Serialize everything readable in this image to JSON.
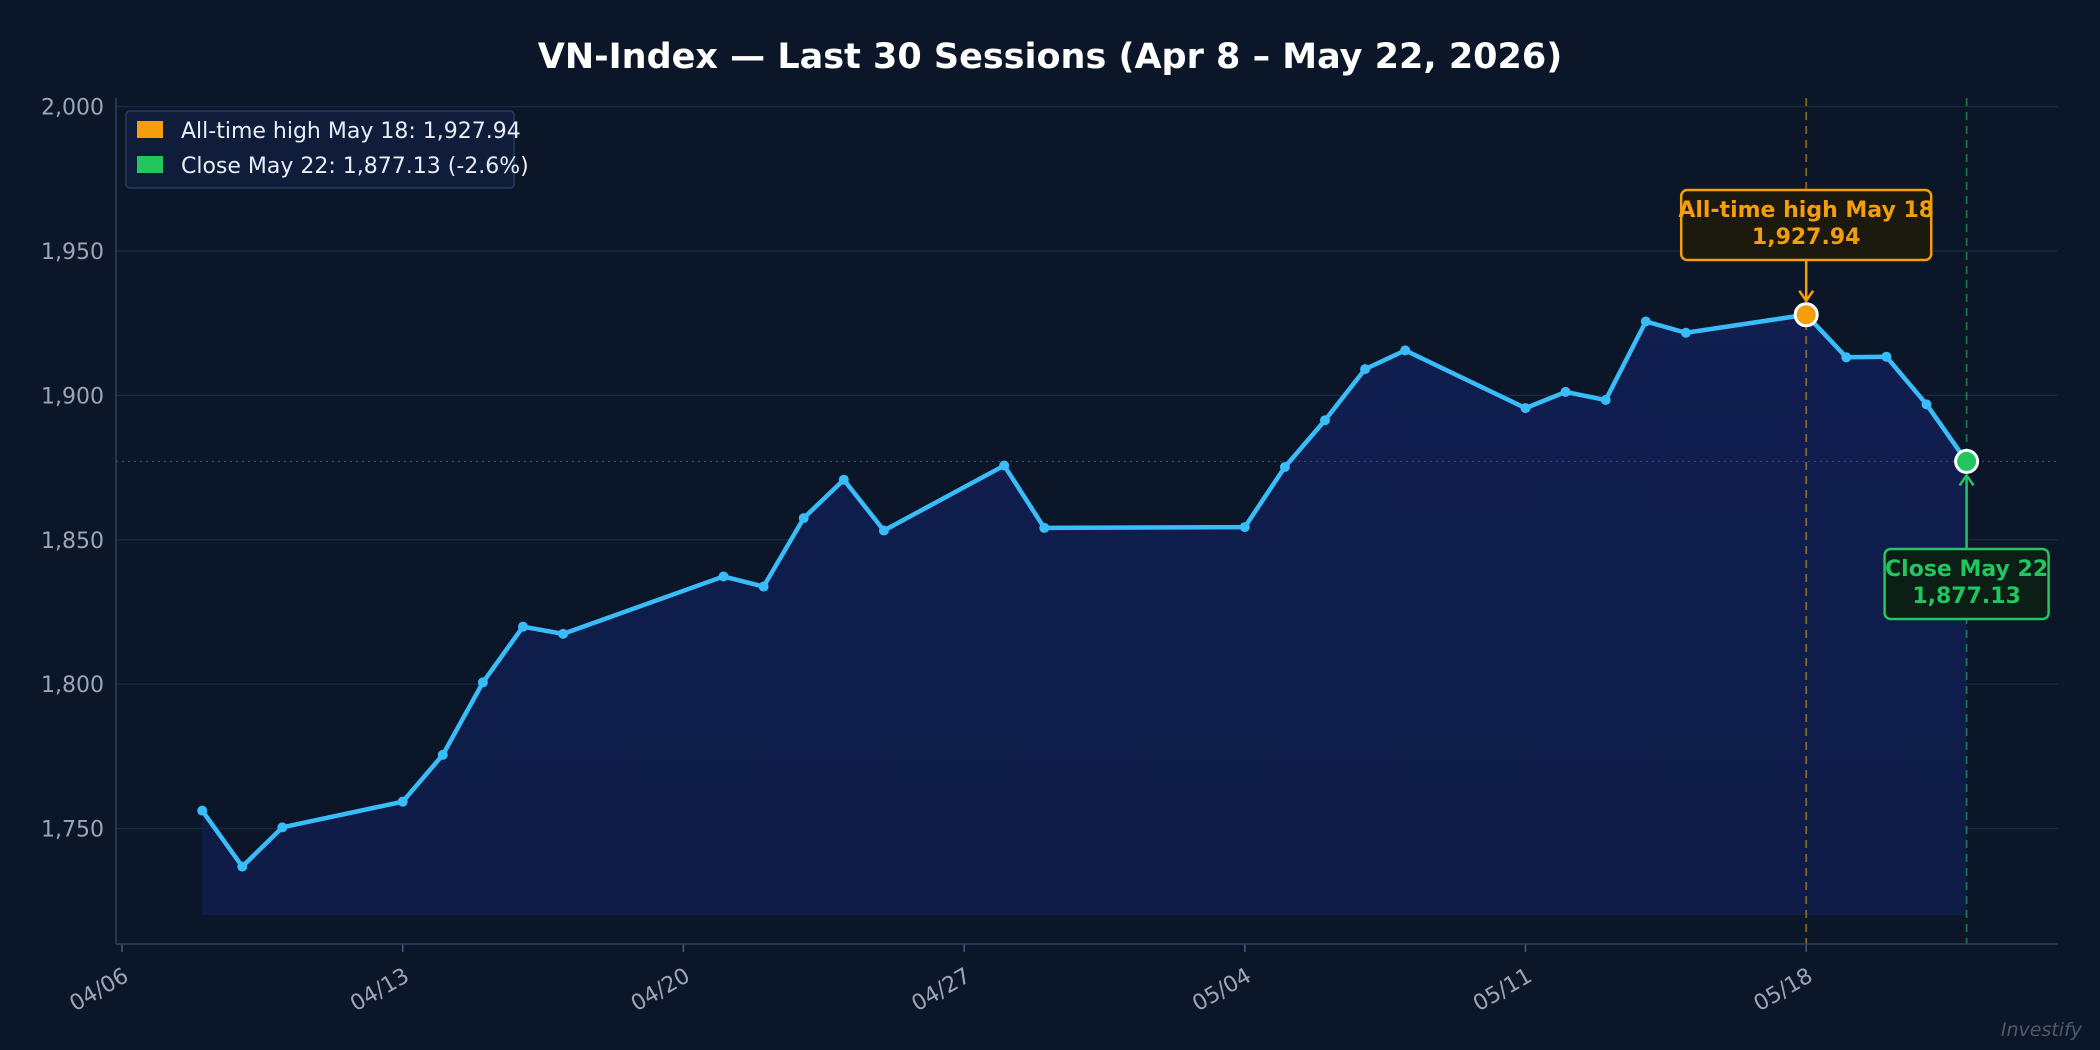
{
  "chart_data": {
    "type": "line",
    "title": "VN-Index — Last 30 Sessions (Apr 8 – May 22, 2026)",
    "xlabel": "",
    "ylabel": "",
    "x_tick_labels": [
      "04/06",
      "04/13",
      "04/20",
      "04/27",
      "05/04",
      "05/11",
      "05/18"
    ],
    "y_tick_labels": [
      "1,750",
      "1,800",
      "1,850",
      "1,900",
      "1,950",
      "2,000"
    ],
    "ylim": [
      1710,
      2003
    ],
    "grid": true,
    "legend_position": "top-left",
    "series": [
      {
        "color": "#38bdf8",
        "points": [
          {
            "x": "2026-04-08",
            "y": 1756.2
          },
          {
            "x": "2026-04-09",
            "y": 1736.8
          },
          {
            "x": "2026-04-10",
            "y": 1750.4
          },
          {
            "x": "2026-04-13",
            "y": 1759.3
          },
          {
            "x": "2026-04-14",
            "y": 1775.5
          },
          {
            "x": "2026-04-15",
            "y": 1800.6
          },
          {
            "x": "2026-04-16",
            "y": 1819.9
          },
          {
            "x": "2026-04-17",
            "y": 1817.4
          },
          {
            "x": "2026-04-21",
            "y": 1837.3
          },
          {
            "x": "2026-04-22",
            "y": 1833.8
          },
          {
            "x": "2026-04-23",
            "y": 1857.5
          },
          {
            "x": "2026-04-24",
            "y": 1870.8
          },
          {
            "x": "2026-04-25",
            "y": 1853.2
          },
          {
            "x": "2026-04-28",
            "y": 1875.7
          },
          {
            "x": "2026-04-29",
            "y": 1854.1
          },
          {
            "x": "2026-05-04",
            "y": 1854.4
          },
          {
            "x": "2026-05-05",
            "y": 1875.2
          },
          {
            "x": "2026-05-06",
            "y": 1891.4
          },
          {
            "x": "2026-05-07",
            "y": 1909.1
          },
          {
            "x": "2026-05-08",
            "y": 1915.6
          },
          {
            "x": "2026-05-11",
            "y": 1895.6
          },
          {
            "x": "2026-05-12",
            "y": 1901.2
          },
          {
            "x": "2026-05-13",
            "y": 1898.4
          },
          {
            "x": "2026-05-14",
            "y": 1925.6
          },
          {
            "x": "2026-05-15",
            "y": 1921.7
          },
          {
            "x": "2026-05-18",
            "y": 1927.94
          },
          {
            "x": "2026-05-19",
            "y": 1913.2
          },
          {
            "x": "2026-05-20",
            "y": 1913.4
          },
          {
            "x": "2026-05-21",
            "y": 1896.9
          },
          {
            "x": "2026-05-22",
            "y": 1877.13
          }
        ]
      }
    ],
    "legend": [
      {
        "label": "All-time high May 18: 1,927.94",
        "color": "#f59e0b"
      },
      {
        "label": "Close May 22: 1,877.13 (-2.6%)",
        "color": "#22c55e"
      }
    ],
    "annotations": [
      {
        "x": "2026-05-18",
        "y": 1927.94,
        "lines": [
          "All-time high May 18",
          "1,927.94"
        ],
        "color": "#f59e0b"
      },
      {
        "x": "2026-05-22",
        "y": 1877.13,
        "lines": [
          "Close May 22",
          "1,877.13"
        ],
        "color": "#22c55e"
      }
    ],
    "watermark": "Investify"
  }
}
